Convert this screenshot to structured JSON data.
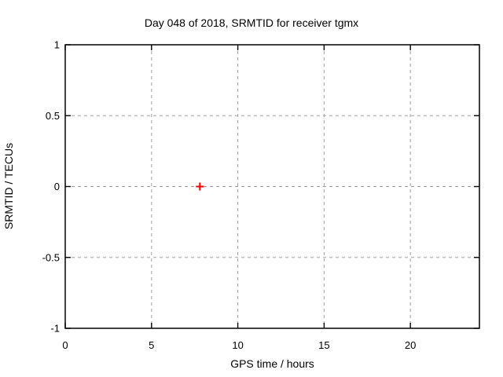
{
  "window": {
    "background": "#ffffff"
  },
  "chart_data": {
    "type": "scatter",
    "title": "Day 048 of 2018, SRMTID for receiver tgmx",
    "xlabel": "GPS time / hours",
    "ylabel": "SRMTID / TECUs",
    "xlim": [
      0,
      24
    ],
    "ylim": [
      -1,
      1
    ],
    "xticks": [
      0,
      5,
      10,
      15,
      20
    ],
    "xtick_labels": [
      "0",
      "5",
      "10",
      "15",
      "20"
    ],
    "yticks": [
      1,
      0.5,
      0,
      -0.5,
      -1
    ],
    "ytick_labels": [
      "1",
      "0.5",
      "0",
      "-0.5",
      "-1"
    ],
    "grid": {
      "enabled": true,
      "style": "dashed",
      "x_gridlines_at": [
        5,
        10,
        15,
        20
      ],
      "y_gridlines_at": [
        0.5,
        0,
        -0.5
      ]
    },
    "legend": "none",
    "series": [
      {
        "marker": "plus",
        "color": "#ff0000",
        "points": [
          [
            7.8,
            0.0
          ]
        ]
      }
    ],
    "colors": {
      "background": "#ffffff",
      "border": "#000000",
      "grid": "#a0a0a0",
      "text": "#000000",
      "marker": "#ff0000"
    }
  }
}
